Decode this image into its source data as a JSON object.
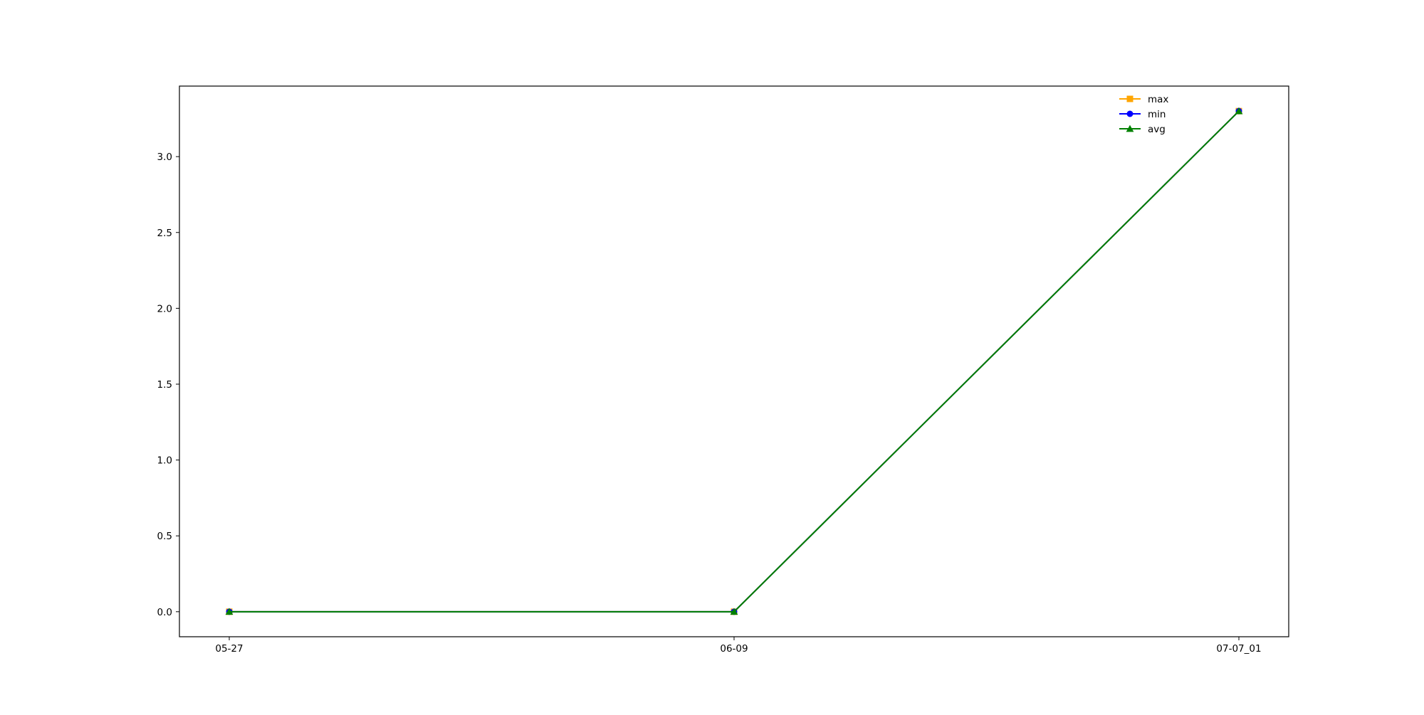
{
  "chart_data": {
    "type": "line",
    "categories": [
      "05-27",
      "06-09",
      "07-07_01"
    ],
    "series": [
      {
        "name": "max",
        "values": [
          0.0,
          0.0,
          3.3
        ],
        "color": "#ffa500",
        "marker": "square"
      },
      {
        "name": "min",
        "values": [
          0.0,
          0.0,
          3.3
        ],
        "color": "#0000ff",
        "marker": "circle"
      },
      {
        "name": "avg",
        "values": [
          0.0,
          0.0,
          3.3
        ],
        "color": "#008000",
        "marker": "triangle"
      }
    ],
    "yticks": [
      "0.0",
      "0.5",
      "1.0",
      "1.5",
      "2.0",
      "2.5",
      "3.0"
    ],
    "ylim": [
      -0.165,
      3.465
    ],
    "title": "",
    "xlabel": "",
    "ylabel": "",
    "grid": false,
    "legend_position": "top-right"
  }
}
